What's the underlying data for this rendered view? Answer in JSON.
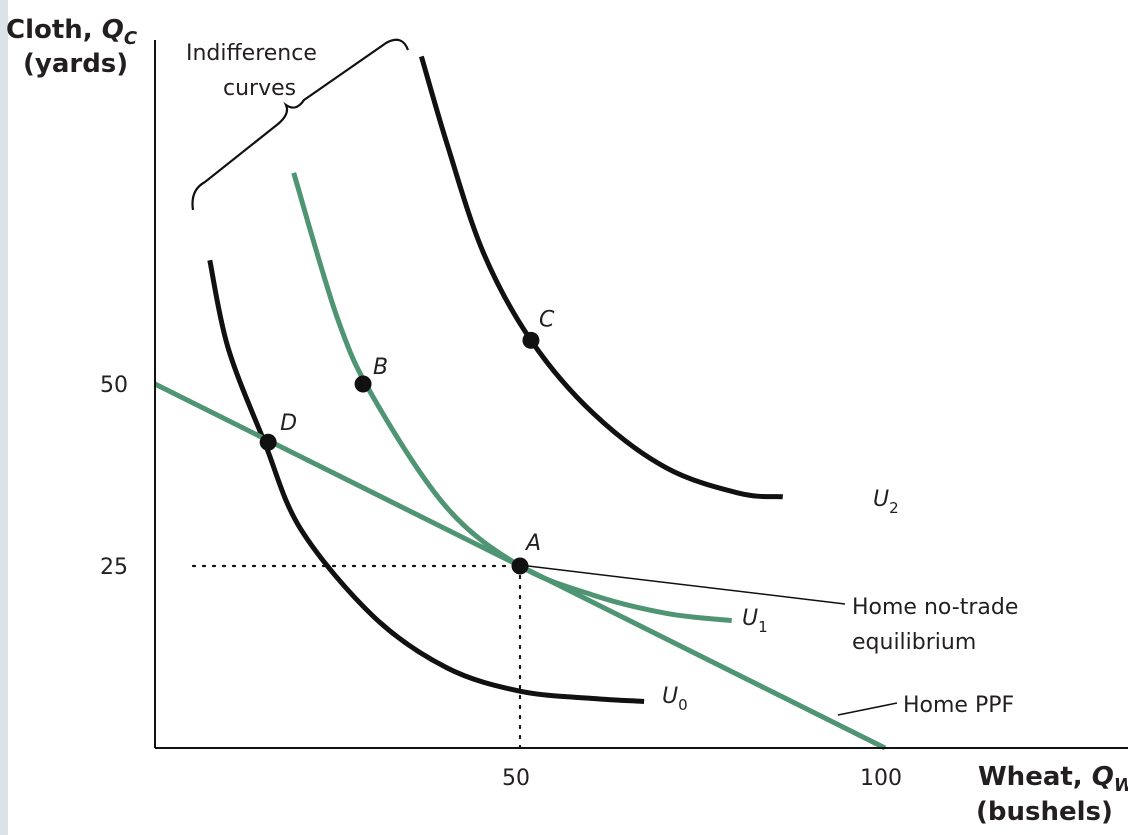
{
  "colors": {
    "green": "#4f9473",
    "black": "#111111",
    "text": "#231f20",
    "strip": "#dbe3ea"
  },
  "chart_data": {
    "type": "line",
    "y_axis": {
      "title_line1": "Cloth, ",
      "title_var": "Q",
      "title_sub": "C",
      "title_line2": "(yards)",
      "ticks": [
        25,
        50
      ],
      "range": [
        0,
        100
      ]
    },
    "x_axis": {
      "title_line1": "Wheat, ",
      "title_var": "Q",
      "title_sub": "W",
      "title_line2": "(bushels)",
      "ticks": [
        50,
        100
      ],
      "range": [
        0,
        103
      ]
    },
    "ppf": {
      "label": "Home PPF",
      "points": [
        [
          0,
          50
        ],
        [
          100,
          0
        ]
      ]
    },
    "indifference_curves": [
      {
        "id": "U0",
        "label": "U",
        "sub": "0",
        "points": [
          [
            7.5,
            67
          ],
          [
            10,
            55
          ],
          [
            15,
            42
          ],
          [
            20,
            30
          ],
          [
            30,
            18
          ],
          [
            40,
            11
          ],
          [
            50,
            7.8
          ],
          [
            60,
            6.8
          ],
          [
            67,
            6.4
          ]
        ]
      },
      {
        "id": "U1",
        "label": "U",
        "sub": "1",
        "points": [
          [
            19,
            79
          ],
          [
            25,
            59
          ],
          [
            30,
            48
          ],
          [
            40,
            33
          ],
          [
            50,
            25
          ],
          [
            60,
            21
          ],
          [
            70,
            18.5
          ],
          [
            79,
            17.5
          ]
        ]
      },
      {
        "id": "U2",
        "label": "U",
        "sub": "2",
        "points": [
          [
            36.5,
            95
          ],
          [
            40,
            83
          ],
          [
            45,
            68
          ],
          [
            51.5,
            56
          ],
          [
            60,
            46
          ],
          [
            70,
            38.5
          ],
          [
            80,
            35
          ],
          [
            86,
            34.5
          ]
        ]
      }
    ],
    "points": [
      {
        "label": "A",
        "x": 50,
        "y": 25
      },
      {
        "label": "B",
        "x": 28.5,
        "y": 50
      },
      {
        "label": "C",
        "x": 51.5,
        "y": 56
      },
      {
        "label": "D",
        "x": 15.5,
        "y": 42
      }
    ],
    "annotations": {
      "indifference_line1": "Indifference",
      "indifference_line2": "curves",
      "equilibrium_line1": "Home no-trade",
      "equilibrium_line2": "equilibrium",
      "ppf_label": "Home PPF"
    }
  }
}
